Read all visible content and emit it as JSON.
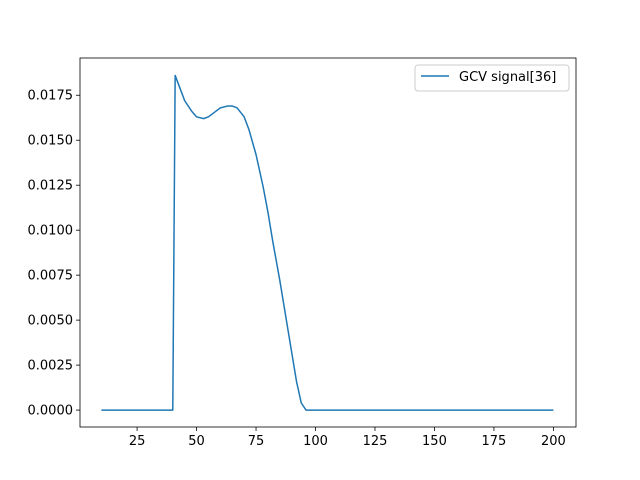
{
  "chart_data": {
    "type": "line",
    "title": "",
    "xlabel": "",
    "ylabel": "",
    "xlim": [
      1.0,
      209.5
    ],
    "ylim": [
      -0.00094,
      0.01957
    ],
    "grid": false,
    "legend_position": "top-right",
    "x_ticks": [
      25,
      50,
      75,
      100,
      125,
      150,
      175,
      200
    ],
    "x_tick_labels": [
      "25",
      "50",
      "75",
      "100",
      "125",
      "150",
      "175",
      "200"
    ],
    "y_ticks": [
      0.0,
      0.0025,
      0.005,
      0.0075,
      0.01,
      0.0125,
      0.015,
      0.0175
    ],
    "y_tick_labels": [
      "0.0000",
      "0.0025",
      "0.0050",
      "0.0075",
      "0.0100",
      "0.0125",
      "0.0150",
      "0.0175"
    ],
    "series": [
      {
        "name": "GCV signal[36]",
        "color": "#1f77b4",
        "x": [
          10,
          20,
          30,
          39,
          40,
          41,
          43,
          45,
          48,
          50,
          53,
          55,
          58,
          60,
          63,
          65,
          67,
          70,
          72,
          75,
          78,
          80,
          82,
          85,
          87,
          90,
          92,
          94,
          95,
          96,
          100,
          110,
          125,
          150,
          175,
          200
        ],
        "y": [
          0.0,
          0.0,
          0.0,
          0.0,
          0.0,
          0.0186,
          0.0179,
          0.0172,
          0.0166,
          0.0163,
          0.0162,
          0.0163,
          0.0166,
          0.0168,
          0.0169,
          0.0169,
          0.0168,
          0.0163,
          0.0156,
          0.0142,
          0.0124,
          0.011,
          0.0094,
          0.0072,
          0.0056,
          0.0032,
          0.0016,
          0.0004,
          0.0002,
          0.0,
          0.0,
          0.0,
          0.0,
          0.0,
          0.0,
          0.0
        ]
      }
    ]
  }
}
